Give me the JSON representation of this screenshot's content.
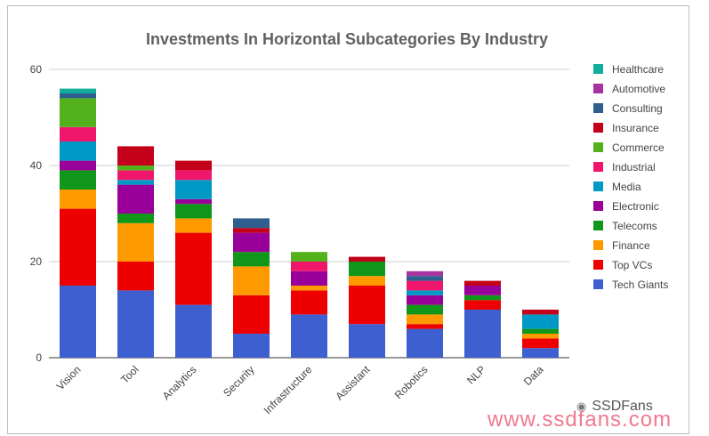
{
  "watermark": {
    "brand": "SSDFans",
    "url": "www.ssdfans.com"
  },
  "chart_data": {
    "type": "bar",
    "stacked": true,
    "title": "Investments In Horizontal Subcategories By Industry",
    "xlabel": "",
    "ylabel": "",
    "ylim": [
      0,
      60
    ],
    "yticks": [
      0,
      20,
      40,
      60
    ],
    "grid": true,
    "legend_position": "right",
    "categories": [
      "Vision",
      "Tool",
      "Analytics",
      "Security",
      "Infrastructure",
      "Assistant",
      "Robotics",
      "NLP",
      "Data"
    ],
    "series": [
      {
        "name": "Tech Giants",
        "color": "#3e5fcf",
        "values": [
          15,
          14,
          11,
          5,
          9,
          7,
          6,
          10,
          2
        ]
      },
      {
        "name": "Top VCs",
        "color": "#ee0000",
        "values": [
          16,
          6,
          15,
          8,
          5,
          8,
          1,
          2,
          2
        ]
      },
      {
        "name": "Finance",
        "color": "#ff9900",
        "values": [
          4,
          8,
          3,
          6,
          1,
          2,
          2,
          0,
          1
        ]
      },
      {
        "name": "Telecoms",
        "color": "#109618",
        "values": [
          4,
          2,
          3,
          3,
          0,
          3,
          2,
          1,
          1
        ]
      },
      {
        "name": "Electronic",
        "color": "#990099",
        "values": [
          2,
          6,
          1,
          4,
          3,
          0,
          2,
          2,
          0
        ]
      },
      {
        "name": "Media",
        "color": "#0099c6",
        "values": [
          4,
          1,
          4,
          0,
          0,
          0,
          1,
          0,
          3
        ]
      },
      {
        "name": "Industrial",
        "color": "#f0166c",
        "values": [
          3,
          2,
          2,
          0,
          2,
          0,
          2,
          0,
          0
        ]
      },
      {
        "name": "Commerce",
        "color": "#53b21b",
        "values": [
          6,
          1,
          0,
          0,
          2,
          0,
          0,
          0,
          0
        ]
      },
      {
        "name": "Insurance",
        "color": "#c4001a",
        "values": [
          0,
          4,
          2,
          1,
          0,
          1,
          0,
          1,
          1
        ]
      },
      {
        "name": "Consulting",
        "color": "#2e5f8f",
        "values": [
          1,
          0,
          0,
          2,
          0,
          0,
          1,
          0,
          0
        ]
      },
      {
        "name": "Automotive",
        "color": "#a6339f",
        "values": [
          0,
          0,
          0,
          0,
          0,
          0,
          1,
          0,
          0
        ]
      },
      {
        "name": "Healthcare",
        "color": "#12ad9b",
        "values": [
          1,
          0,
          0,
          0,
          0,
          0,
          0,
          0,
          0
        ]
      }
    ]
  }
}
